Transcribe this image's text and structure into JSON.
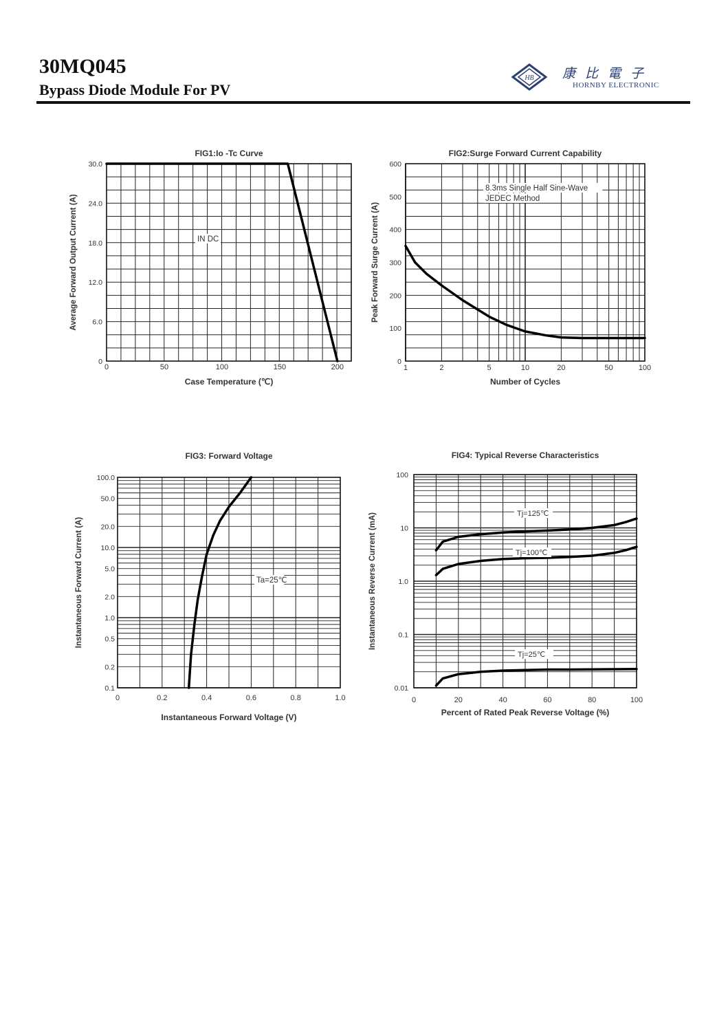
{
  "header": {
    "part_number": "30MQ045",
    "subtitle": "Bypass Diode Module For PV",
    "logo_chinese": "康比電子",
    "logo_english": "HORNBY ELECTRONIC",
    "logo_mark": "HB",
    "brand_color": "#2b3f73"
  },
  "chart_data": [
    {
      "id": "fig1",
      "type": "line",
      "title": "FIG1:Io -Tc Curve",
      "xlabel": "Case Temperature (℃)",
      "ylabel": "Average Forward Output Current (A)",
      "xlim": [
        0,
        212
      ],
      "ylim": [
        0,
        30
      ],
      "x_ticks": [
        "0",
        "50",
        "100",
        "150",
        "200"
      ],
      "y_ticks": [
        "0",
        "6.0",
        "12.0",
        "18.0",
        "24.0",
        "30.0"
      ],
      "annotations": [
        "IN DC"
      ],
      "series": [
        {
          "name": "IN DC",
          "x": [
            0,
            157,
            200
          ],
          "y": [
            30,
            30,
            0
          ]
        }
      ]
    },
    {
      "id": "fig2",
      "type": "line",
      "title": "FIG2:Surge Forward Current Capability",
      "xlabel": "Number of Cycles",
      "ylabel": "Peak Forward Surge Current (A)",
      "xscale": "log",
      "xlim": [
        1,
        100
      ],
      "ylim": [
        0,
        600
      ],
      "x_ticks": [
        "1",
        "2",
        "5",
        "10",
        "20",
        "50",
        "100"
      ],
      "y_ticks": [
        "0",
        "100",
        "200",
        "300",
        "400",
        "500",
        "600"
      ],
      "annotations": [
        "8.3ms Single Half Sine-Wave",
        "JEDEC Method"
      ],
      "series": [
        {
          "name": "Surge",
          "x": [
            1,
            1.2,
            1.5,
            2,
            3,
            5,
            7,
            10,
            15,
            20,
            30,
            50,
            100
          ],
          "y": [
            350,
            300,
            265,
            230,
            185,
            135,
            110,
            90,
            78,
            72,
            70,
            70,
            70
          ]
        }
      ]
    },
    {
      "id": "fig3",
      "type": "line",
      "title": "FIG3: Forward Voltage",
      "xlabel": "Instantaneous Forward Voltage (V)",
      "ylabel": "Instantaneous Forward Current (A)",
      "yscale": "log",
      "xlim": [
        0,
        1.0
      ],
      "ylim": [
        0.1,
        100
      ],
      "x_ticks": [
        "0",
        "0.2",
        "0.4",
        "0.6",
        "0.8",
        "1.0"
      ],
      "y_ticks": [
        "0.1",
        "0.2",
        "0.5",
        "1.0",
        "2.0",
        "5.0",
        "10.0",
        "20.0",
        "50.0",
        "100.0"
      ],
      "annotations": [
        "Ta=25℃"
      ],
      "series": [
        {
          "name": "Ta=25℃",
          "x": [
            0.32,
            0.33,
            0.345,
            0.36,
            0.38,
            0.4,
            0.43,
            0.46,
            0.5,
            0.55,
            0.6
          ],
          "y": [
            0.1,
            0.3,
            0.8,
            1.8,
            4.0,
            8.0,
            15.0,
            24.0,
            38.0,
            60.0,
            100.0
          ]
        }
      ]
    },
    {
      "id": "fig4",
      "type": "line",
      "title": "FIG4:  Typical Reverse Characteristics",
      "xlabel": "Percent of Rated Peak Reverse Voltage (%)",
      "ylabel": "Instantaneous Reverse Current (mA)",
      "yscale": "log",
      "xlim": [
        0,
        100
      ],
      "ylim": [
        0.01,
        100
      ],
      "x_ticks": [
        "0",
        "20",
        "40",
        "60",
        "80",
        "100"
      ],
      "y_ticks": [
        "0.01",
        "0.1",
        "1.0",
        "10",
        "100"
      ],
      "series": [
        {
          "name": "Tj=125℃",
          "x": [
            10,
            13,
            20,
            30,
            40,
            50,
            60,
            70,
            80,
            90,
            95,
            100
          ],
          "y": [
            3.8,
            5.5,
            6.8,
            7.6,
            8.2,
            8.6,
            8.9,
            9.3,
            10.0,
            11.3,
            12.8,
            15.0
          ]
        },
        {
          "name": "Tj=100℃",
          "x": [
            10,
            13,
            20,
            30,
            40,
            50,
            60,
            70,
            80,
            90,
            95,
            100
          ],
          "y": [
            1.3,
            1.7,
            2.1,
            2.4,
            2.6,
            2.7,
            2.75,
            2.85,
            3.0,
            3.4,
            3.8,
            4.4
          ]
        },
        {
          "name": "Tj=25℃",
          "x": [
            10,
            13,
            20,
            30,
            40,
            50,
            60,
            70,
            80,
            90,
            100
          ],
          "y": [
            0.011,
            0.015,
            0.018,
            0.02,
            0.021,
            0.0215,
            0.022,
            0.022,
            0.0222,
            0.0223,
            0.0225
          ]
        }
      ]
    }
  ]
}
